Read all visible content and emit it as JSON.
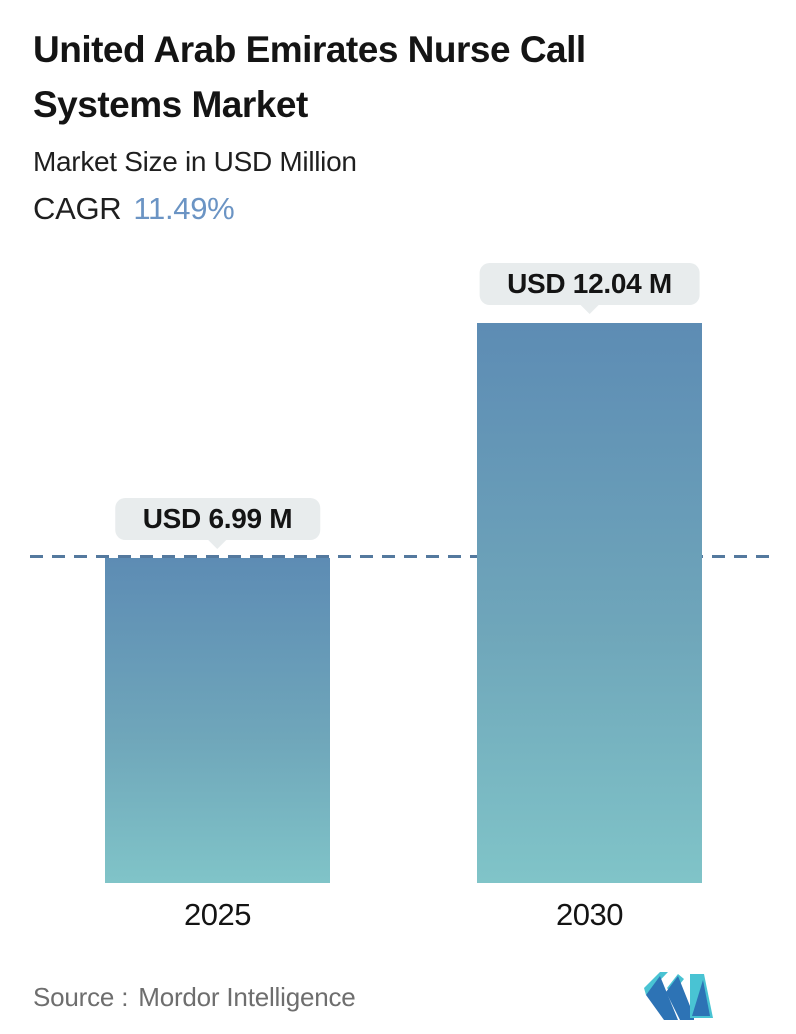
{
  "header": {
    "title_line1": "United Arab Emirates Nurse Call",
    "title_line2": "Systems Market",
    "subtitle": "Market Size in USD Million",
    "cagr_label": "CAGR",
    "cagr_value": "11.49%"
  },
  "chart_data": {
    "type": "bar",
    "title": "United Arab Emirates Nurse Call Systems Market",
    "subtitle": "Market Size in USD Million",
    "cagr_percent": 11.49,
    "categories": [
      "2025",
      "2030"
    ],
    "values": [
      6.99,
      12.04
    ],
    "value_labels": [
      "USD 6.99 M",
      "USD 12.04 M"
    ],
    "unit": "USD Million",
    "ylim": [
      0,
      12.04
    ],
    "reference_line_value": 6.99,
    "grid": "off",
    "legend": "none",
    "bar_gradient_top": "#5d8cb4",
    "bar_gradient_bottom": "#80c4c8",
    "reference_line_color": "#54799e",
    "label_pill_bg": "#e8eced"
  },
  "footer": {
    "source_label": "Source :",
    "source_value": "Mordor Intelligence",
    "logo": "mordor-intelligence-logo",
    "logo_blue": "#2d73b5",
    "logo_teal": "#49c3d3"
  }
}
